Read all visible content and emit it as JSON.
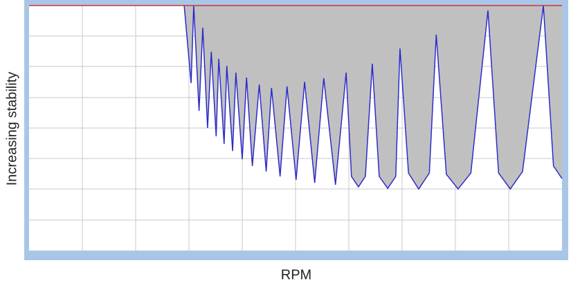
{
  "chart_data": {
    "type": "area",
    "x_label": "RPM",
    "y_label": "Increasing stability",
    "xlim": [
      0,
      10
    ],
    "ylim": [
      0,
      8
    ],
    "series": [
      {
        "color": "#2b2bcc",
        "fill": "#c0c0c0",
        "x": [
          2.91,
          3.04,
          3.09,
          3.19,
          3.26,
          3.35,
          3.42,
          3.51,
          3.56,
          3.66,
          3.71,
          3.82,
          3.88,
          4.0,
          4.08,
          4.19,
          4.32,
          4.45,
          4.55,
          4.71,
          4.84,
          5.01,
          5.17,
          5.36,
          5.53,
          5.75,
          5.95,
          6.05,
          6.18,
          6.31,
          6.44,
          6.57,
          6.73,
          6.88,
          6.96,
          7.12,
          7.31,
          7.51,
          7.64,
          7.83,
          8.05,
          8.29,
          8.61,
          8.81,
          9.03,
          9.26,
          9.65,
          9.84,
          10.0
        ],
        "values": [
          8.0,
          5.47,
          8.0,
          4.56,
          7.28,
          4.0,
          6.49,
          3.73,
          6.26,
          3.48,
          6.03,
          3.25,
          5.81,
          2.98,
          5.65,
          2.76,
          5.42,
          2.58,
          5.31,
          2.42,
          5.36,
          2.31,
          5.51,
          2.21,
          5.63,
          2.15,
          5.81,
          2.42,
          2.08,
          2.42,
          6.1,
          2.42,
          2.03,
          2.42,
          6.6,
          2.53,
          2.01,
          2.53,
          7.05,
          2.49,
          2.01,
          2.53,
          7.84,
          2.53,
          2.01,
          2.58,
          8.0,
          2.76,
          2.35
        ]
      }
    ]
  }
}
